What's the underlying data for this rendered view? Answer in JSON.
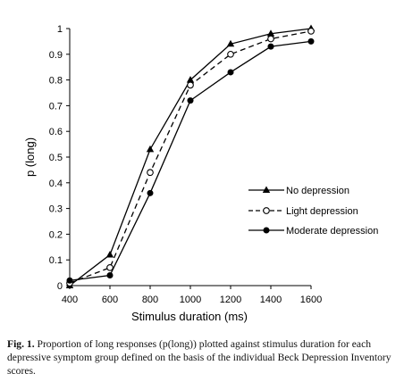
{
  "chart_data": {
    "type": "line",
    "title": "",
    "xlabel": "Stimulus duration (ms)",
    "ylabel": "p (long)",
    "x": [
      400,
      600,
      800,
      1000,
      1200,
      1400,
      1600
    ],
    "xlim": [
      400,
      1600
    ],
    "ylim": [
      0,
      1
    ],
    "xticks": [
      "400",
      "600",
      "800",
      "1000",
      "1200",
      "1400",
      "1600"
    ],
    "yticks": [
      "0",
      "0.1",
      "0.2",
      "0.3",
      "0.4",
      "0.5",
      "0.6",
      "0.7",
      "0.8",
      "0.9",
      "1"
    ],
    "grid": false,
    "legend_position": "right",
    "series": [
      {
        "name": "No depression",
        "marker": "triangle",
        "line": "solid",
        "values": [
          0.0,
          0.12,
          0.53,
          0.8,
          0.94,
          0.98,
          1.0
        ]
      },
      {
        "name": "Light depression",
        "marker": "open-circle",
        "line": "dashed",
        "values": [
          0.01,
          0.07,
          0.44,
          0.78,
          0.9,
          0.96,
          0.99
        ]
      },
      {
        "name": "Moderate depression",
        "marker": "filled-circle",
        "line": "solid",
        "values": [
          0.02,
          0.04,
          0.36,
          0.72,
          0.83,
          0.93,
          0.95
        ]
      }
    ]
  },
  "caption": {
    "label": "Fig. 1.",
    "text": "Proportion of long responses (p(long)) plotted against stimulus duration for each depressive symptom group defined on the basis of the individual Beck Depression Inventory scores."
  }
}
